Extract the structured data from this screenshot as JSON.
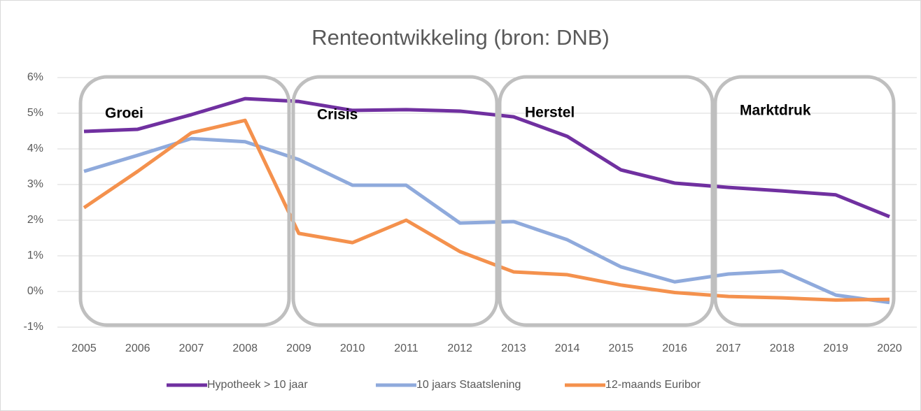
{
  "chart_data": {
    "type": "line",
    "title": "Renteontwikkeling (bron: DNB)",
    "categories": [
      "2005",
      "2006",
      "2007",
      "2008",
      "2009",
      "2010",
      "2011",
      "2012",
      "2013",
      "2014",
      "2015",
      "2016",
      "2017",
      "2018",
      "2019",
      "2020"
    ],
    "series": [
      {
        "name": "Hypotheek > 10 jaar",
        "color": "#7030a0",
        "values": [
          4.49,
          4.55,
          4.96,
          5.41,
          5.33,
          5.08,
          5.1,
          5.06,
          4.9,
          4.35,
          3.41,
          3.04,
          2.92,
          2.82,
          2.71,
          2.1
        ]
      },
      {
        "name": "10 jaars Staatslening",
        "color": "#8faadc",
        "values": [
          3.37,
          3.82,
          4.29,
          4.2,
          3.7,
          2.98,
          2.98,
          1.92,
          1.96,
          1.45,
          0.69,
          0.27,
          0.49,
          0.57,
          -0.1,
          -0.31
        ]
      },
      {
        "name": "12-maands Euribor",
        "color": "#f4914d",
        "values": [
          2.35,
          3.37,
          4.45,
          4.8,
          1.63,
          1.37,
          2.0,
          1.12,
          0.55,
          0.47,
          0.18,
          -0.03,
          -0.14,
          -0.18,
          -0.24,
          -0.22
        ]
      }
    ],
    "ylim": [
      -1,
      6
    ],
    "yticks": [
      {
        "value": -1,
        "label": "-1%"
      },
      {
        "value": 0,
        "label": "0%"
      },
      {
        "value": 1,
        "label": "1%"
      },
      {
        "value": 2,
        "label": "2%"
      },
      {
        "value": 3,
        "label": "3%"
      },
      {
        "value": 4,
        "label": "4%"
      },
      {
        "value": 5,
        "label": "5%"
      },
      {
        "value": 6,
        "label": "6%"
      }
    ],
    "grid": true,
    "legend": "bottom",
    "annotations": [
      "Groei",
      "Crisis",
      "Herstel",
      "Marktdruk"
    ]
  }
}
